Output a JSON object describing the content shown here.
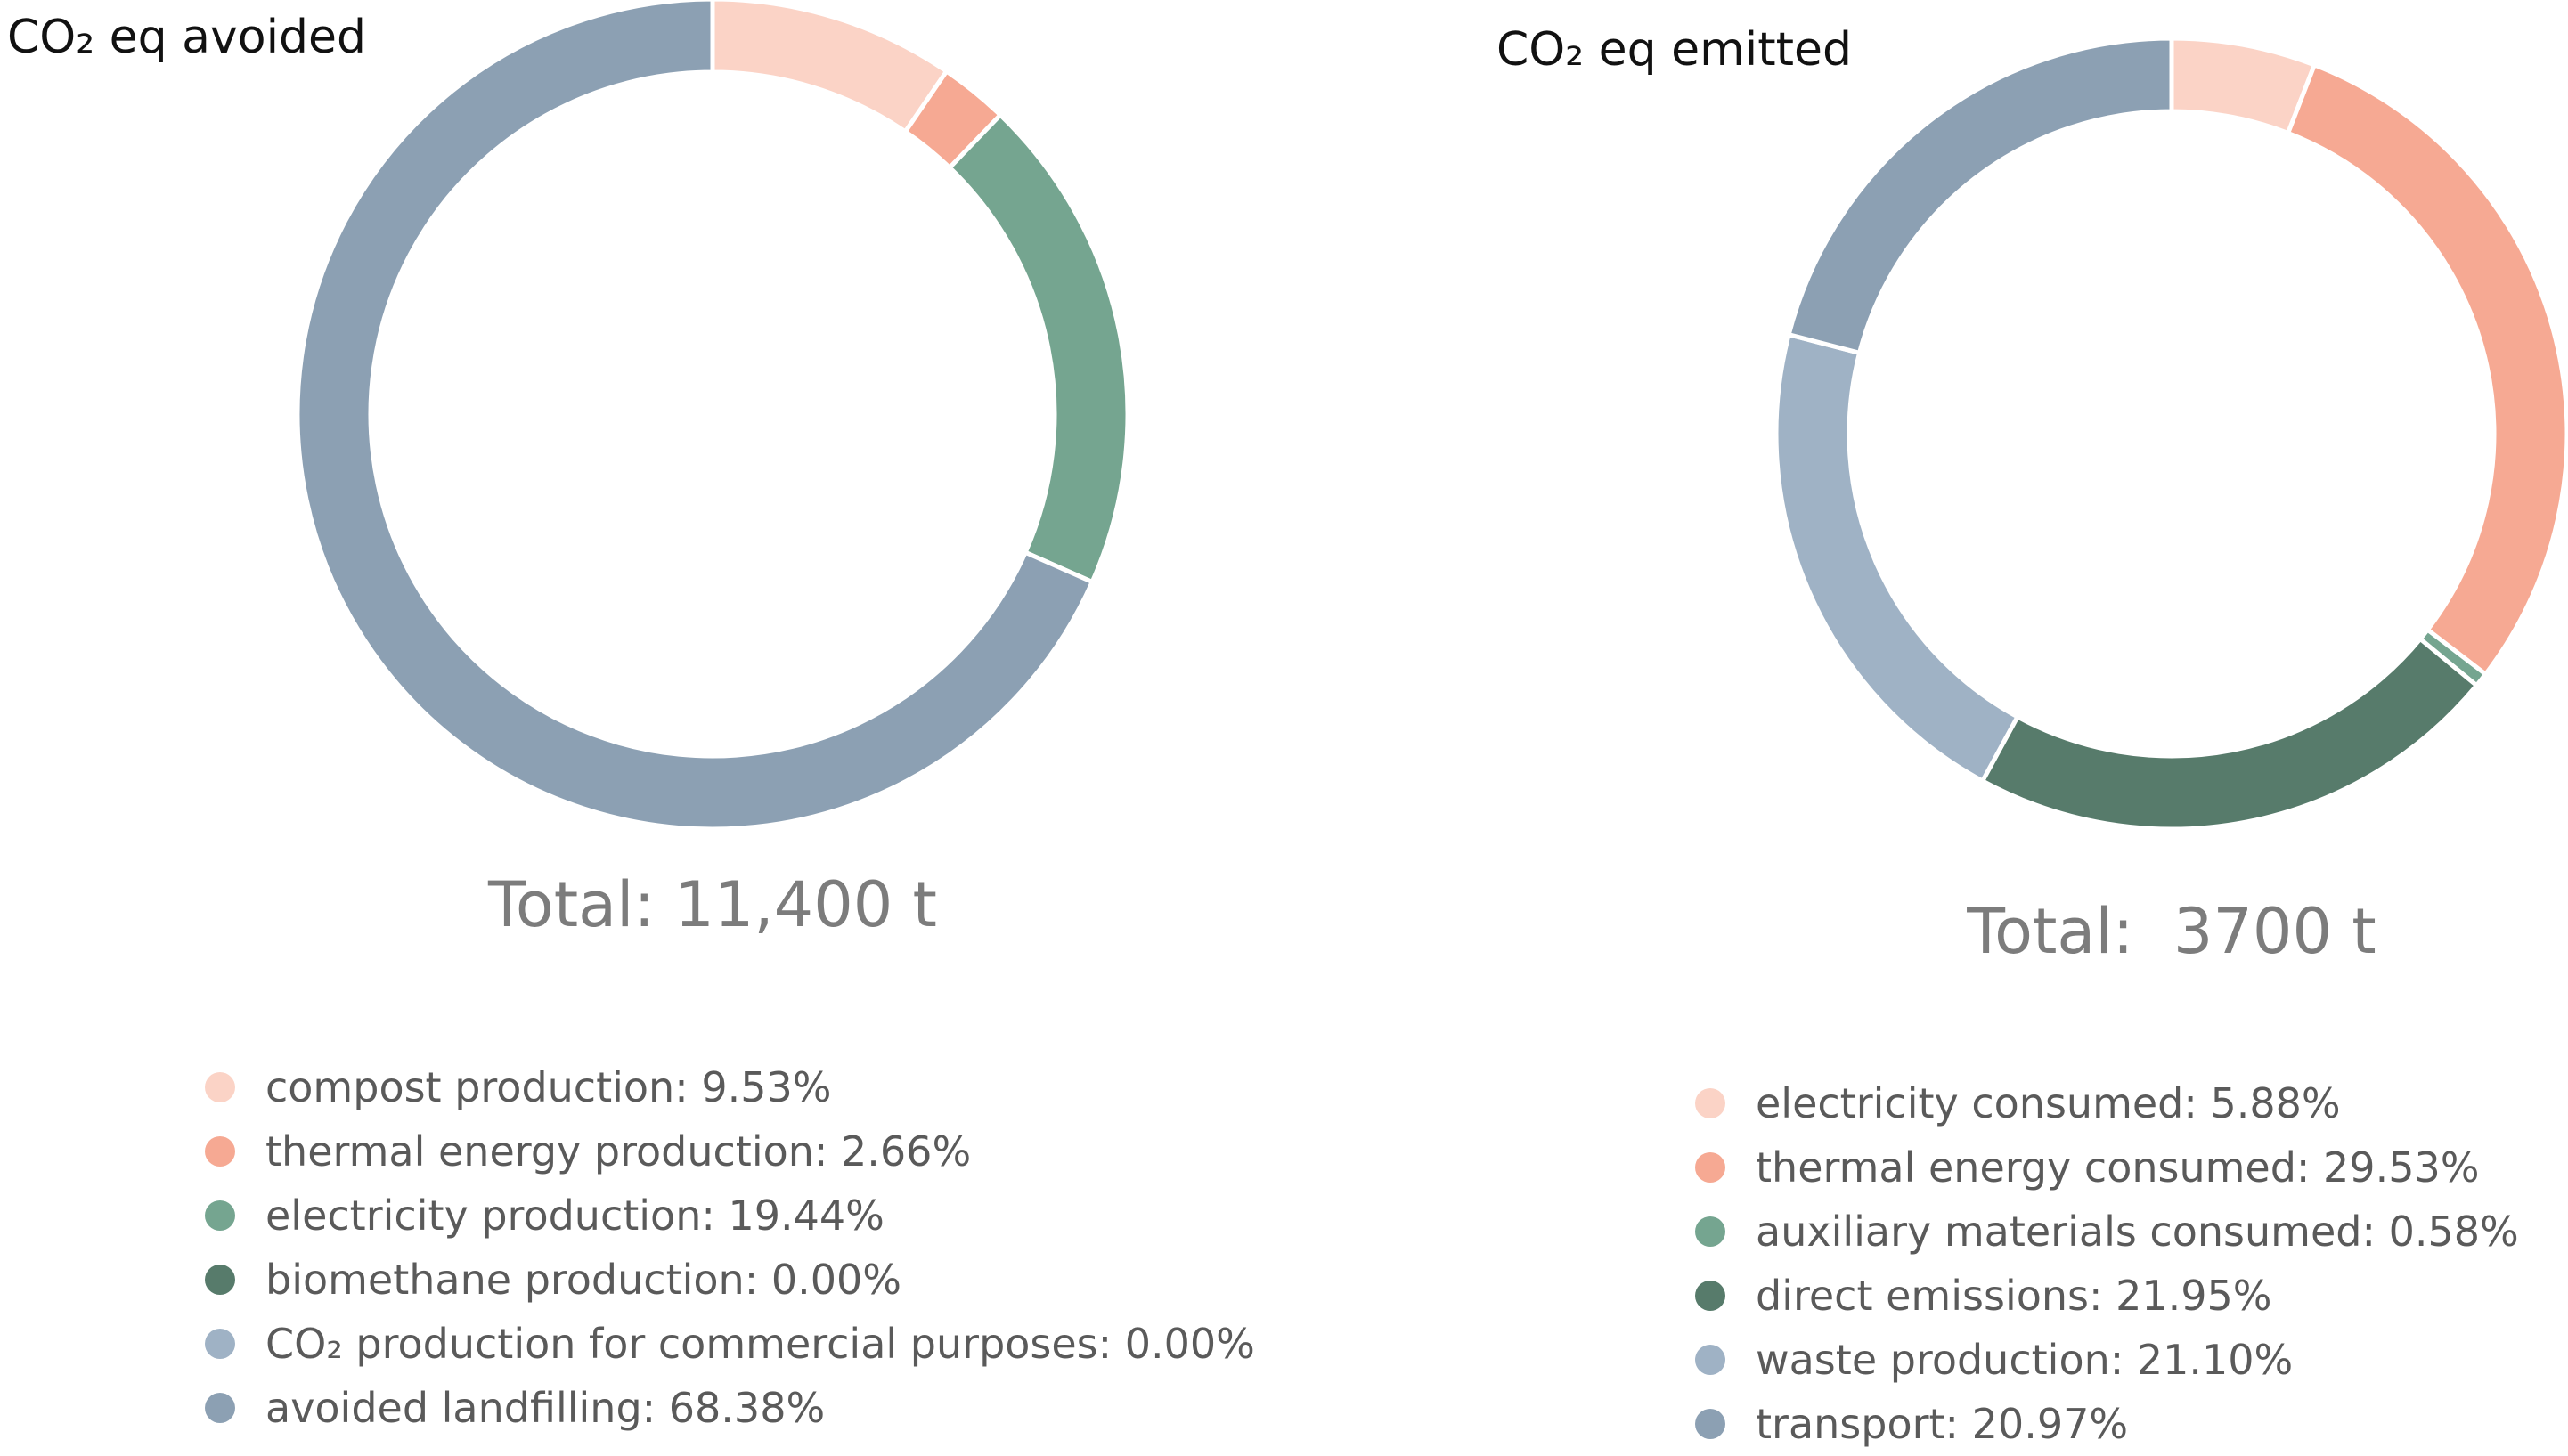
{
  "colors": {
    "salmon_light": "#fbd3c6",
    "salmon": "#f6a993",
    "green": "#75a590",
    "green_dark": "#577b6b",
    "blue_light": "#9fb2c5",
    "blue_slate": "#8ca0b3"
  },
  "chart_data": [
    {
      "type": "pie",
      "title": "CO₂ eq avoided",
      "total_label": "Total: 11,400 t",
      "categories": [
        "compost production",
        "thermal energy production",
        "electricity production",
        "biomethane production",
        "CO₂ production for commercial purposes",
        "avoided landfilling"
      ],
      "values": [
        9.53,
        2.66,
        19.44,
        0.0,
        0.0,
        68.38
      ],
      "unit": "%",
      "legend": [
        "compost production: 9.53%",
        "thermal energy production: 2.66%",
        "electricity production: 19.44%",
        "biomethane production: 0.00%",
        "CO₂ production for commercial purposes: 0.00%",
        "avoided landfilling: 68.38%"
      ],
      "colors": [
        "#fbd3c6",
        "#f6a993",
        "#75a590",
        "#577b6b",
        "#9fb2c5",
        "#8ca0b3"
      ]
    },
    {
      "type": "pie",
      "title": "CO₂ eq emitted",
      "total_label": "Total:  3700 t",
      "categories": [
        "electricity consumed",
        "thermal energy consumed",
        "auxiliary materials consumed",
        "direct emissions",
        "waste production",
        "transport"
      ],
      "values": [
        5.88,
        29.53,
        0.58,
        21.95,
        21.1,
        20.97
      ],
      "unit": "%",
      "legend": [
        "electricity consumed: 5.88%",
        "thermal energy consumed: 29.53%",
        "auxiliary materials consumed: 0.58%",
        "direct emissions: 21.95%",
        "waste production: 21.10%",
        "transport: 20.97%"
      ],
      "colors": [
        "#fbd3c6",
        "#f6a993",
        "#75a590",
        "#577b6b",
        "#9fb2c5",
        "#8ca0b3"
      ]
    }
  ]
}
